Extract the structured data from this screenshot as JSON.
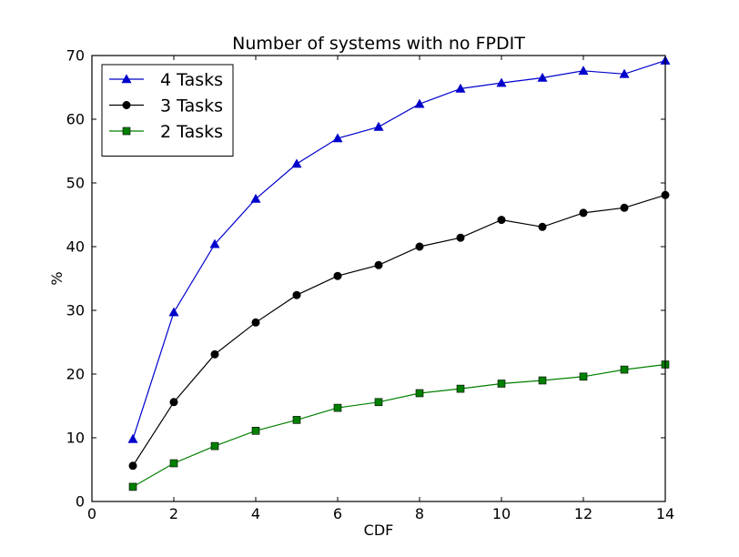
{
  "chart_data": {
    "type": "line",
    "title": "Number of systems with no FPDIT",
    "xlabel": "CDF",
    "ylabel": "%",
    "xlim": [
      0,
      14
    ],
    "ylim": [
      0,
      70
    ],
    "xticks": [
      0,
      2,
      4,
      6,
      8,
      10,
      12,
      14
    ],
    "yticks": [
      0,
      10,
      20,
      30,
      40,
      50,
      60,
      70
    ],
    "grid": false,
    "legend_position": "top-left",
    "x": [
      1,
      2,
      3,
      4,
      5,
      6,
      7,
      8,
      9,
      10,
      11,
      12,
      13,
      14
    ],
    "series": [
      {
        "name": "4 Tasks",
        "color": "#0000cc",
        "marker": "triangle",
        "values": [
          9.8,
          29.7,
          40.4,
          47.5,
          53.0,
          57.0,
          58.8,
          62.4,
          64.8,
          65.7,
          66.5,
          67.6,
          67.1,
          69.2
        ]
      },
      {
        "name": "3 Tasks",
        "color": "#000000",
        "marker": "circle",
        "values": [
          5.6,
          15.6,
          23.1,
          28.1,
          32.4,
          35.4,
          37.1,
          40.0,
          41.4,
          44.2,
          43.1,
          45.3,
          46.1,
          48.1
        ]
      },
      {
        "name": "2 Tasks",
        "color": "#007f00",
        "marker": "square",
        "values": [
          2.3,
          6.0,
          8.7,
          11.1,
          12.8,
          14.7,
          15.6,
          17.0,
          17.7,
          18.5,
          19.0,
          19.6,
          20.7,
          21.5
        ]
      }
    ]
  }
}
